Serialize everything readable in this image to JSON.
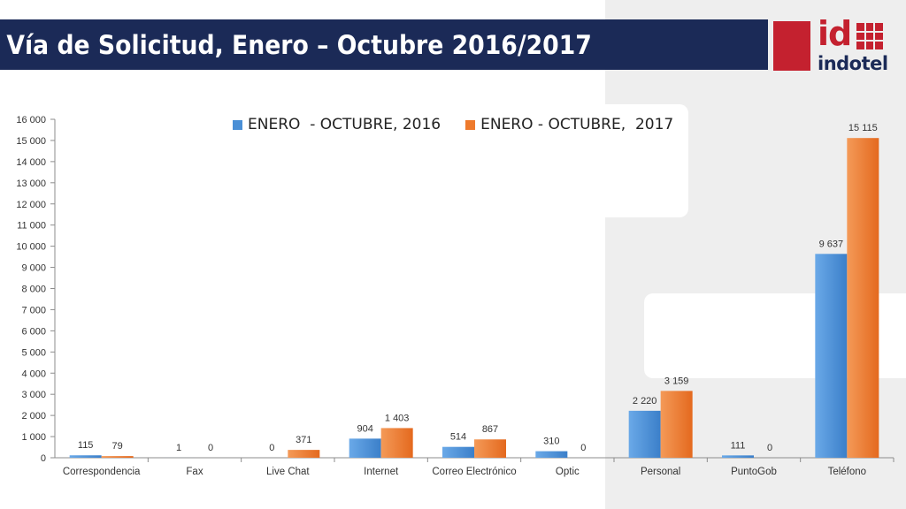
{
  "header": {
    "title": "Vía de Solicitud, Enero – Octubre 2016/2017"
  },
  "logo": {
    "id_text": "id",
    "word": "indotel",
    "color": "#c4212f",
    "navy": "#1b2a57"
  },
  "chart_data": {
    "type": "bar",
    "title": "",
    "xlabel": "",
    "ylabel": "",
    "ylim": [
      0,
      16000
    ],
    "ytick_step": 1000,
    "grid": false,
    "legend_position": "top",
    "categories": [
      "Correspondencia",
      "Fax",
      "Live Chat",
      "Internet",
      "Correo Electrónico",
      "Optic",
      "Personal",
      "PuntoGob",
      "Teléfono"
    ],
    "series": [
      {
        "name": "ENERO  - OCTUBRE, 2016",
        "color": "#4a8fd6",
        "values": [
          115,
          1,
          0,
          904,
          514,
          310,
          2220,
          111,
          9637
        ]
      },
      {
        "name": "ENERO - OCTUBRE,  2017",
        "color": "#ee7a2c",
        "values": [
          79,
          0,
          371,
          1403,
          867,
          0,
          3159,
          0,
          15115
        ]
      }
    ]
  }
}
